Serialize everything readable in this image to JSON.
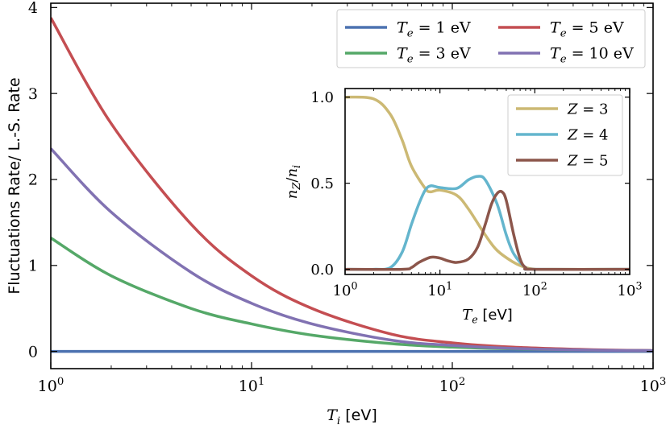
{
  "chart_data": [
    {
      "type": "line",
      "xscale": "log",
      "xlim": [
        1,
        1000
      ],
      "ylim": [
        -0.2,
        4.05
      ],
      "x_ticks": [
        {
          "value": 1,
          "base": "10",
          "exp": "0"
        },
        {
          "value": 10,
          "base": "10",
          "exp": "1"
        },
        {
          "value": 100,
          "base": "10",
          "exp": "2"
        },
        {
          "value": 1000,
          "base": "10",
          "exp": "3"
        }
      ],
      "y_ticks": [
        {
          "value": 0,
          "label": "0"
        },
        {
          "value": 1,
          "label": "1"
        },
        {
          "value": 2,
          "label": "2"
        },
        {
          "value": 3,
          "label": "3"
        },
        {
          "value": 4,
          "label": "4"
        }
      ],
      "xlabel": {
        "var": "T",
        "sub": "i",
        "unit": " [eV]"
      },
      "ylabel": "Fluctuations Rate/ L.-S. Rate",
      "legend_position": "top-right",
      "series": [
        {
          "name": "T_e = 1 eV",
          "label_var": "T",
          "label_sub": "e",
          "label_rest": " = 1 eV",
          "color": "#4c72b0",
          "x": [
            1,
            2,
            5,
            10,
            20,
            50,
            100,
            200,
            500,
            1000
          ],
          "y": [
            0.0,
            0.0,
            0.0,
            0.0,
            0.0,
            0.0,
            0.0,
            0.0,
            0.0,
            0.0
          ]
        },
        {
          "name": "T_e = 3 eV",
          "label_var": "T",
          "label_sub": "e",
          "label_rest": " = 3 eV",
          "color": "#55a868",
          "x": [
            1,
            2,
            5,
            10,
            20,
            50,
            100,
            200,
            500,
            1000
          ],
          "y": [
            1.32,
            0.88,
            0.5,
            0.32,
            0.19,
            0.09,
            0.05,
            0.03,
            0.015,
            0.01
          ]
        },
        {
          "name": "T_e = 5 eV",
          "label_var": "T",
          "label_sub": "e",
          "label_rest": " = 5 eV",
          "color": "#c44e52",
          "x": [
            1,
            2,
            5,
            10,
            20,
            50,
            100,
            200,
            500,
            1000
          ],
          "y": [
            3.88,
            2.65,
            1.48,
            0.88,
            0.5,
            0.2,
            0.1,
            0.05,
            0.02,
            0.01
          ]
        },
        {
          "name": "T_e = 10 eV",
          "label_var": "T",
          "label_sub": "e",
          "label_rest": " = 10 eV",
          "color": "#8172b2",
          "x": [
            1,
            2,
            5,
            10,
            20,
            50,
            100,
            200,
            500,
            1000
          ],
          "y": [
            2.36,
            1.62,
            0.92,
            0.56,
            0.32,
            0.13,
            0.07,
            0.035,
            0.015,
            0.01
          ]
        }
      ]
    },
    {
      "type": "line",
      "role": "inset",
      "xscale": "log",
      "xlim": [
        1,
        1000
      ],
      "ylim": [
        -0.03,
        1.05
      ],
      "x_ticks": [
        {
          "value": 1,
          "base": "10",
          "exp": "0"
        },
        {
          "value": 10,
          "base": "10",
          "exp": "1"
        },
        {
          "value": 100,
          "base": "10",
          "exp": "2"
        },
        {
          "value": 1000,
          "base": "10",
          "exp": "3"
        }
      ],
      "y_ticks": [
        {
          "value": 0,
          "label": "0.0"
        },
        {
          "value": 0.5,
          "label": "0.5"
        },
        {
          "value": 1,
          "label": "1.0"
        }
      ],
      "xlabel": {
        "var": "T",
        "sub": "e",
        "unit": " [eV]"
      },
      "ylabel": {
        "num": "n",
        "num_sub": "Z",
        "den": "n",
        "den_sub": "i"
      },
      "legend_position": "top-right",
      "series": [
        {
          "name": "Z = 3",
          "label_var": "Z",
          "label_rest": " = 3",
          "color": "#ccb974",
          "x": [
            1,
            2,
            3,
            4,
            5,
            7,
            8,
            10,
            15,
            20,
            30,
            40,
            60,
            80,
            100,
            150,
            1000
          ],
          "y": [
            1.0,
            0.99,
            0.9,
            0.75,
            0.6,
            0.47,
            0.45,
            0.46,
            0.43,
            0.35,
            0.2,
            0.11,
            0.04,
            0.01,
            0.0,
            0.0,
            0.0
          ]
        },
        {
          "name": "Z = 4",
          "label_var": "Z",
          "label_rest": " = 4",
          "color": "#64b5cd",
          "x": [
            1,
            2,
            3,
            4,
            5,
            6,
            7,
            8,
            10,
            15,
            20,
            25,
            30,
            40,
            50,
            60,
            80,
            100,
            1000
          ],
          "y": [
            0.0,
            0.0,
            0.01,
            0.1,
            0.26,
            0.38,
            0.46,
            0.485,
            0.475,
            0.47,
            0.52,
            0.54,
            0.52,
            0.38,
            0.2,
            0.09,
            0.01,
            0.0,
            0.0
          ]
        },
        {
          "name": "Z = 5",
          "label_var": "Z",
          "label_rest": " = 5",
          "color": "#8c564b",
          "x": [
            1,
            4,
            5,
            6,
            8,
            10,
            12,
            15,
            20,
            25,
            30,
            35,
            40,
            45,
            50,
            60,
            70,
            80,
            100,
            1000
          ],
          "y": [
            0.0,
            0.0,
            0.01,
            0.04,
            0.07,
            0.065,
            0.05,
            0.04,
            0.06,
            0.13,
            0.26,
            0.38,
            0.44,
            0.45,
            0.4,
            0.2,
            0.06,
            0.01,
            0.0,
            0.0
          ]
        }
      ]
    }
  ]
}
